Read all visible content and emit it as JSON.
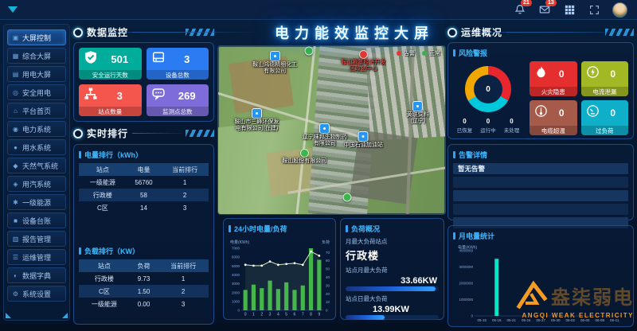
{
  "topbar": {
    "bell_badge": "21",
    "mail_badge": "13"
  },
  "header": {
    "title": "电力能效监控大屏"
  },
  "sidebar": {
    "items": [
      {
        "label": "大屏控制",
        "icon": "screen-control-icon",
        "active": true
      },
      {
        "label": "综合大屏",
        "icon": "comprehensive-screen-icon",
        "active": false
      },
      {
        "label": "用电大屏",
        "icon": "power-screen-icon",
        "active": false
      },
      {
        "label": "安全用电",
        "icon": "safe-power-icon",
        "active": false
      },
      {
        "label": "平台首页",
        "icon": "home-icon",
        "active": false
      },
      {
        "label": "电力系统",
        "icon": "power-system-icon",
        "active": false
      },
      {
        "label": "用水系统",
        "icon": "water-system-icon",
        "active": false
      },
      {
        "label": "天然气系统",
        "icon": "gas-system-icon",
        "active": false
      },
      {
        "label": "用汽系统",
        "icon": "steam-system-icon",
        "active": false
      },
      {
        "label": "一级能源",
        "icon": "energy-icon",
        "active": false
      },
      {
        "label": "设备台账",
        "icon": "device-ledger-icon",
        "active": false
      },
      {
        "label": "报告管理",
        "icon": "report-icon",
        "active": false
      },
      {
        "label": "运维管理",
        "icon": "ops-icon",
        "active": false
      },
      {
        "label": "数据字典",
        "icon": "dictionary-icon",
        "active": false
      },
      {
        "label": "系统设置",
        "icon": "settings-icon",
        "active": false
      }
    ]
  },
  "data_monitor": {
    "title": "数据监控",
    "cards": [
      {
        "value": "501",
        "label": "安全运行天数",
        "color": "#00AC9B",
        "icon": "shield-check-icon"
      },
      {
        "value": "3",
        "label": "设备总数",
        "color": "#2B7BF3",
        "icon": "device-icon"
      },
      {
        "value": "3",
        "label": "站点数量",
        "color": "#F4554C",
        "icon": "sitemap-icon"
      },
      {
        "value": "269",
        "label": "监测点总数",
        "color": "#7E6CDA",
        "icon": "monitor-points-icon"
      }
    ]
  },
  "realtime_rank": {
    "title": "实时排行",
    "energy_table": {
      "title": "电量排行（kWh）",
      "headers": [
        "站点",
        "电量",
        "当前排行"
      ],
      "rows": [
        [
          "一级能源",
          "56760",
          "1"
        ],
        [
          "行政楼",
          "58",
          "2"
        ],
        [
          "C区",
          "14",
          "3"
        ]
      ]
    },
    "load_table": {
      "title": "负载排行（KW）",
      "headers": [
        "站点",
        "负荷",
        "当前排行"
      ],
      "rows": [
        [
          "行政楼",
          "9.73",
          "1"
        ],
        [
          "C区",
          "1.50",
          "2"
        ],
        [
          "一级能源",
          "0.00",
          "3"
        ]
      ]
    }
  },
  "map": {
    "legend": [
      {
        "label": "告警",
        "color": "#e8392f"
      },
      {
        "label": "正常",
        "color": "#3cb54a"
      }
    ],
    "markers": [
      {
        "label": "鞍山鸿德精细化工有限公司",
        "type": "blue",
        "x": 25,
        "y": 10
      },
      {
        "label": "鞍山腾鳌经济开发区政创中心",
        "type": "red",
        "x": 64,
        "y": 9
      },
      {
        "label": "鞍山市三峰环保发电有限公司(在建)",
        "type": "blue",
        "x": 17,
        "y": 44
      },
      {
        "label": "辽宁味邦生物制药有限公司",
        "type": "blue",
        "x": 47,
        "y": 53
      },
      {
        "label": "鞍山股份有限公司",
        "type": "green",
        "x": 38,
        "y": 66
      },
      {
        "label": "中国石油加油站",
        "type": "blue",
        "x": 64,
        "y": 56
      },
      {
        "label": "黄联饲料(辽宁)",
        "type": "blue",
        "x": 88,
        "y": 40
      },
      {
        "label": "",
        "type": "green",
        "x": 40,
        "y": 3
      },
      {
        "label": "",
        "type": "green",
        "x": 57,
        "y": 90
      }
    ]
  },
  "load_overview": {
    "title": "负荷概况",
    "station_caption": "月最大负荷站点",
    "station": "行政楼",
    "monthly_caption": "站点月最大负荷",
    "monthly_value": "33.66KW",
    "monthly_percent": 97,
    "daily_caption": "站点日最大负荷",
    "daily_value": "13.99KW",
    "daily_percent": 42
  },
  "ops": {
    "title": "运维概况",
    "risk": {
      "title": "风险警报",
      "donut_center": "0",
      "donut_segments": [
        {
          "color": "#E8262D",
          "fraction": 0.333
        },
        {
          "color": "#00C8DC",
          "fraction": 0.333
        },
        {
          "color": "#F0A800",
          "fraction": 0.334
        }
      ],
      "status_legend": [
        {
          "value": "0",
          "label": "已恢复"
        },
        {
          "value": "0",
          "label": "运行中"
        },
        {
          "value": "0",
          "label": "未处理"
        }
      ],
      "alert_cards": [
        {
          "value": "0",
          "label": "火灾隐患",
          "color": "#E52F2F",
          "icon": "fire-icon"
        },
        {
          "value": "0",
          "label": "电流泄漏",
          "color": "#A2B824",
          "icon": "leakage-icon"
        },
        {
          "value": "0",
          "label": "电缆超温",
          "color": "#A65A4A",
          "icon": "temperature-icon"
        },
        {
          "value": "0",
          "label": "过负荷",
          "color": "#0FAFC9",
          "icon": "overload-icon"
        }
      ]
    },
    "alarm": {
      "title": "告警详情",
      "empty_text": "暂无告警",
      "row_count": 5
    }
  },
  "brand": {
    "cn": "盎柒弱电",
    "en": "ANGQI WEAK ELECTRICITY"
  },
  "chart_data": [
    {
      "id": "hourly",
      "type": "bar+line",
      "title": "24小时电量/负荷",
      "ylabel": "电量(KWh)",
      "y2label": "负荷",
      "categories": [
        "0",
        "1",
        "2",
        "3",
        "4",
        "5",
        "6",
        "7",
        "8",
        "9"
      ],
      "series": [
        {
          "name": "电量",
          "type": "bar",
          "axis": "left",
          "values": [
            2300,
            2900,
            2500,
            3350,
            2400,
            3150,
            2300,
            2800,
            7000,
            5700
          ]
        },
        {
          "name": "负荷",
          "type": "line",
          "axis": "right",
          "values": [
            55,
            54,
            54,
            59,
            55,
            56,
            57,
            55,
            71,
            66
          ]
        }
      ],
      "ylim": [
        0,
        7000
      ],
      "yticks": [
        0,
        1000,
        2000,
        3000,
        4000,
        5000,
        6000,
        7000
      ],
      "y2lim": [
        0,
        75
      ],
      "y2ticks": [
        0,
        10,
        20,
        30,
        40,
        50,
        60,
        70
      ],
      "bar_color": "#46b54d",
      "line_color": "#dcedb6"
    },
    {
      "id": "monthly",
      "type": "bar",
      "title": "月电量统计",
      "ylabel": "电量(KWh)",
      "categories": [
        "05-15",
        "05-18",
        "05-21",
        "05-24",
        "05-27",
        "05-30",
        "06-02",
        "06-05",
        "06-08",
        "06-11"
      ],
      "values": [
        0,
        3500000,
        0,
        0,
        0,
        0,
        0,
        0,
        0,
        0
      ],
      "ylim": [
        0,
        4000000
      ],
      "yticks": [
        0,
        1000000,
        2000000,
        3000000,
        4000000
      ],
      "bar_color": "#00E8C8"
    }
  ]
}
